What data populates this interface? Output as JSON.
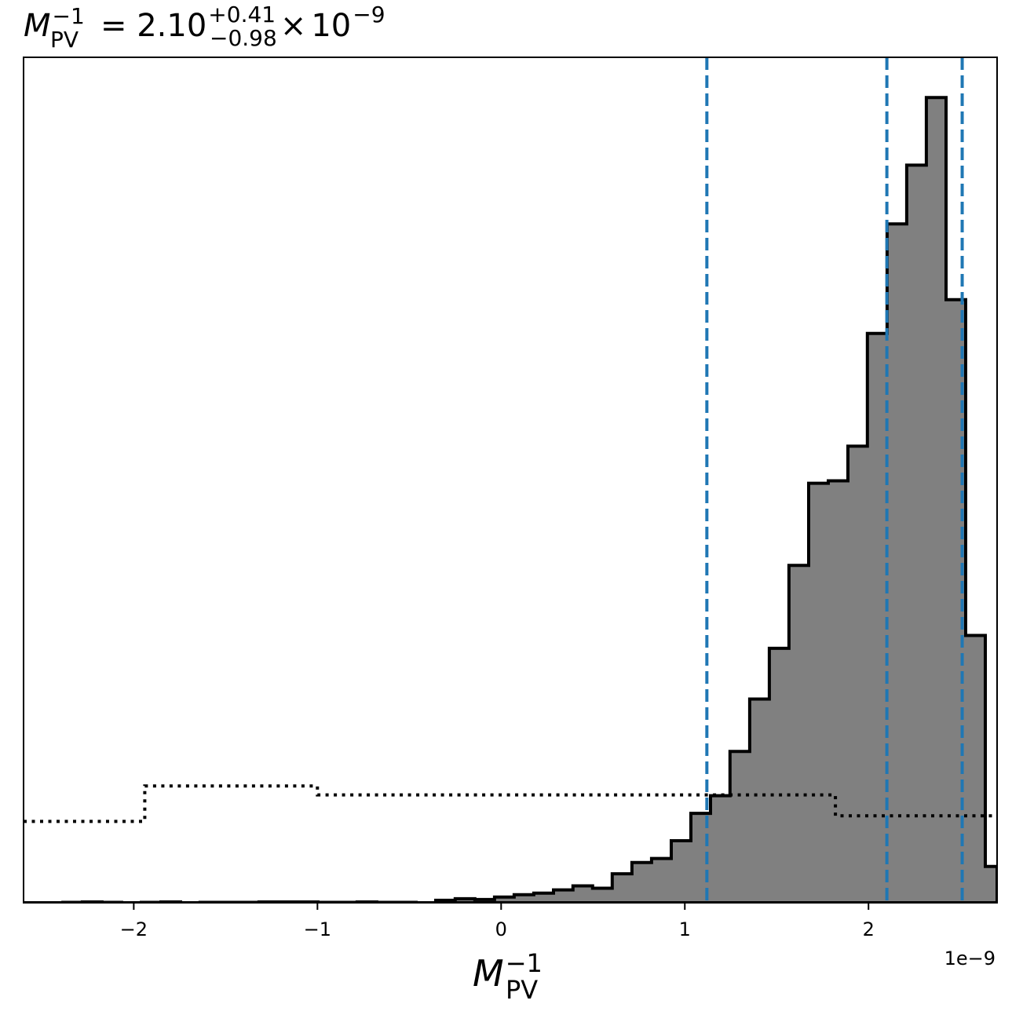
{
  "chart_data": {
    "type": "histogram",
    "title": {
      "symbol": "M",
      "subscript": "PV",
      "superscript": "−1",
      "equals": "= ",
      "median": "2.10",
      "upper_error": "+0.41",
      "lower_error": "−0.98",
      "times": "×",
      "base": "10",
      "exponent": "−9"
    },
    "xlabel": {
      "symbol": "M",
      "subscript": "PV",
      "superscript": "−1"
    },
    "x_offset_label": "1e−9",
    "xlim": [
      -2.6,
      2.7
    ],
    "ylim": [
      0,
      1.05
    ],
    "x_ticks": [
      {
        "value": -2,
        "label": "−2"
      },
      {
        "value": -1,
        "label": "−1"
      },
      {
        "value": 0,
        "label": "0"
      },
      {
        "value": 1,
        "label": "1"
      },
      {
        "value": 2,
        "label": "2"
      }
    ],
    "posterior_histogram": {
      "fill_color": "#808080",
      "edge_color": "#000000",
      "bin_edges": [
        -2.6,
        -2.493,
        -2.386,
        -2.28,
        -2.173,
        -2.066,
        -1.959,
        -1.852,
        -1.745,
        -1.639,
        -1.532,
        -1.425,
        -1.318,
        -1.211,
        -1.104,
        -0.997,
        -0.891,
        -0.784,
        -0.677,
        -0.57,
        -0.463,
        -0.356,
        -0.25,
        -0.143,
        -0.036,
        0.071,
        0.178,
        0.285,
        0.391,
        0.498,
        0.605,
        0.712,
        0.819,
        0.926,
        1.033,
        1.14,
        1.246,
        1.353,
        1.46,
        1.567,
        1.674,
        1.781,
        1.888,
        1.994,
        2.101,
        2.208,
        2.315,
        2.422,
        2.529,
        2.636,
        2.7
      ],
      "heights": [
        0.0,
        0.0,
        0.0005,
        0.001,
        0.0005,
        0.0,
        0.0005,
        0.001,
        0.0,
        0.0005,
        0.0005,
        0.0005,
        0.001,
        0.001,
        0.001,
        0.0005,
        0.0005,
        0.001,
        0.0005,
        0.0005,
        0.0,
        0.003,
        0.005,
        0.004,
        0.007,
        0.01,
        0.012,
        0.016,
        0.021,
        0.018,
        0.036,
        0.05,
        0.055,
        0.077,
        0.111,
        0.133,
        0.188,
        0.253,
        0.316,
        0.419,
        0.521,
        0.524,
        0.567,
        0.707,
        0.843,
        0.916,
        1.0,
        0.749,
        0.332,
        0.045
      ]
    },
    "prior_histogram": {
      "line_style": "dotted",
      "color": "#000000",
      "bin_edges": [
        -2.6,
        -1.94,
        -1.0,
        1.82,
        2.7
      ],
      "heights": [
        0.101,
        0.145,
        0.134,
        0.108
      ]
    },
    "quantile_lines": {
      "color": "#1f77b4",
      "line_style": "dashed",
      "values": [
        1.12,
        2.1,
        2.51
      ]
    }
  }
}
